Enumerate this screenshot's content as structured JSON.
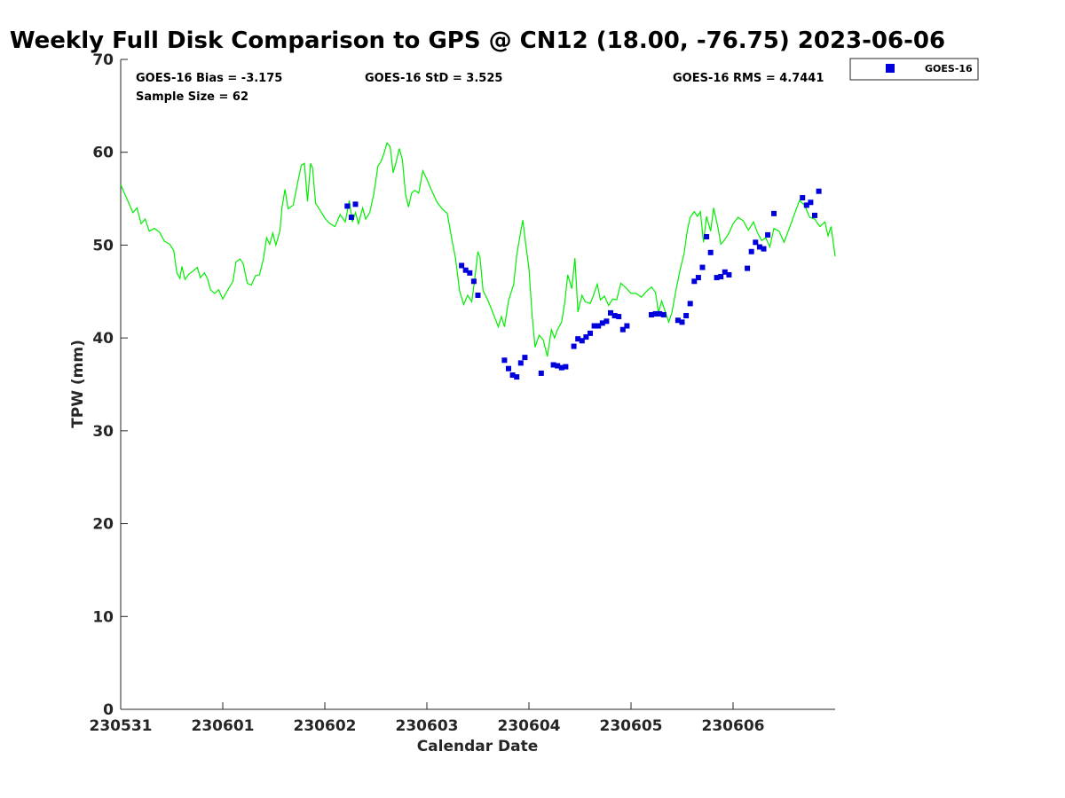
{
  "chart_data": {
    "type": "scatter",
    "title": "Weekly Full Disk Comparison to GPS @ CN12 (18.00, -76.75) 2023-06-06",
    "xlabel": "Calendar Date",
    "ylabel": "TPW (mm)",
    "xlim": [
      0,
      7
    ],
    "ylim": [
      0,
      70
    ],
    "x_ticks": [
      {
        "x": 0,
        "label": "230531"
      },
      {
        "x": 1,
        "label": "230601"
      },
      {
        "x": 2,
        "label": "230602"
      },
      {
        "x": 3,
        "label": "230603"
      },
      {
        "x": 4,
        "label": "230604"
      },
      {
        "x": 5,
        "label": "230605"
      },
      {
        "x": 6,
        "label": "230606"
      }
    ],
    "y_ticks": [
      0,
      10,
      20,
      30,
      40,
      50,
      60,
      70
    ],
    "stats": {
      "bias": "GOES-16 Bias = -3.175",
      "std": "GOES-16 StD = 3.525",
      "rms": "GOES-16 RMS = 4.7441",
      "sample": "Sample Size = 62"
    },
    "legend": {
      "placement": "outside-top-right",
      "entries": [
        {
          "name": "GOES-16",
          "color": "#0000dd",
          "marker": "square"
        }
      ]
    },
    "series": [
      {
        "name": "GPS",
        "kind": "line",
        "color": "#00ee00",
        "points": [
          [
            0.0,
            56.5
          ],
          [
            0.06,
            55.0
          ],
          [
            0.12,
            53.5
          ],
          [
            0.16,
            54.0
          ],
          [
            0.2,
            52.3
          ],
          [
            0.24,
            52.8
          ],
          [
            0.28,
            51.5
          ],
          [
            0.33,
            51.8
          ],
          [
            0.38,
            51.4
          ],
          [
            0.43,
            50.4
          ],
          [
            0.48,
            50.1
          ],
          [
            0.52,
            49.4
          ],
          [
            0.55,
            47.0
          ],
          [
            0.58,
            46.4
          ],
          [
            0.6,
            47.7
          ],
          [
            0.63,
            46.3
          ],
          [
            0.67,
            46.9
          ],
          [
            0.71,
            47.2
          ],
          [
            0.75,
            47.6
          ],
          [
            0.78,
            46.5
          ],
          [
            0.82,
            47.0
          ],
          [
            0.85,
            46.4
          ],
          [
            0.88,
            45.2
          ],
          [
            0.92,
            44.8
          ],
          [
            0.96,
            45.2
          ],
          [
            1.0,
            44.2
          ],
          [
            1.05,
            45.2
          ],
          [
            1.1,
            46.1
          ],
          [
            1.13,
            48.2
          ],
          [
            1.17,
            48.5
          ],
          [
            1.2,
            48.0
          ],
          [
            1.24,
            45.9
          ],
          [
            1.28,
            45.7
          ],
          [
            1.32,
            46.7
          ],
          [
            1.36,
            46.8
          ],
          [
            1.4,
            48.6
          ],
          [
            1.43,
            50.8
          ],
          [
            1.46,
            50.1
          ],
          [
            1.49,
            51.3
          ],
          [
            1.52,
            50.0
          ],
          [
            1.56,
            51.5
          ],
          [
            1.58,
            54.0
          ],
          [
            1.61,
            56.0
          ],
          [
            1.64,
            53.9
          ],
          [
            1.69,
            54.3
          ],
          [
            1.73,
            56.5
          ],
          [
            1.77,
            58.6
          ],
          [
            1.8,
            58.8
          ],
          [
            1.83,
            54.7
          ],
          [
            1.86,
            58.8
          ],
          [
            1.88,
            58.3
          ],
          [
            1.91,
            54.5
          ],
          [
            1.95,
            53.8
          ],
          [
            2.0,
            52.9
          ],
          [
            2.05,
            52.3
          ],
          [
            2.1,
            52.0
          ],
          [
            2.15,
            53.3
          ],
          [
            2.2,
            52.5
          ],
          [
            2.24,
            54.8
          ],
          [
            2.27,
            52.5
          ],
          [
            2.3,
            53.5
          ],
          [
            2.33,
            52.3
          ],
          [
            2.37,
            54.0
          ],
          [
            2.4,
            52.8
          ],
          [
            2.44,
            53.5
          ],
          [
            2.48,
            55.5
          ],
          [
            2.52,
            58.5
          ],
          [
            2.55,
            59.0
          ],
          [
            2.58,
            59.9
          ],
          [
            2.61,
            61.0
          ],
          [
            2.64,
            60.6
          ],
          [
            2.67,
            57.8
          ],
          [
            2.7,
            59.0
          ],
          [
            2.73,
            60.4
          ],
          [
            2.76,
            59.2
          ],
          [
            2.79,
            55.5
          ],
          [
            2.82,
            54.1
          ],
          [
            2.85,
            55.6
          ],
          [
            2.88,
            55.9
          ],
          [
            2.92,
            55.6
          ],
          [
            2.96,
            58.0
          ],
          [
            3.0,
            57.1
          ],
          [
            3.05,
            55.8
          ],
          [
            3.1,
            54.6
          ],
          [
            3.15,
            53.9
          ],
          [
            3.2,
            53.4
          ],
          [
            3.24,
            50.9
          ],
          [
            3.28,
            48.6
          ],
          [
            3.32,
            45.1
          ],
          [
            3.36,
            43.6
          ],
          [
            3.4,
            44.6
          ],
          [
            3.44,
            43.9
          ],
          [
            3.47,
            46.4
          ],
          [
            3.5,
            49.3
          ],
          [
            3.52,
            48.7
          ],
          [
            3.55,
            45.1
          ],
          [
            3.6,
            44.0
          ],
          [
            3.65,
            42.6
          ],
          [
            3.7,
            41.2
          ],
          [
            3.73,
            42.3
          ],
          [
            3.76,
            41.2
          ],
          [
            3.8,
            44.0
          ],
          [
            3.85,
            45.8
          ],
          [
            3.88,
            48.9
          ],
          [
            3.92,
            51.5
          ],
          [
            3.94,
            52.7
          ],
          [
            3.97,
            50.0
          ],
          [
            4.0,
            47.5
          ],
          [
            4.03,
            42.5
          ],
          [
            4.06,
            39.0
          ],
          [
            4.1,
            40.3
          ],
          [
            4.14,
            39.8
          ],
          [
            4.18,
            38.0
          ],
          [
            4.22,
            40.9
          ],
          [
            4.25,
            40.0
          ],
          [
            4.28,
            40.9
          ],
          [
            4.32,
            41.7
          ],
          [
            4.35,
            43.8
          ],
          [
            4.38,
            46.8
          ],
          [
            4.42,
            45.3
          ],
          [
            4.45,
            48.6
          ],
          [
            4.48,
            42.8
          ],
          [
            4.52,
            44.6
          ],
          [
            4.55,
            43.9
          ],
          [
            4.6,
            43.7
          ],
          [
            4.63,
            44.5
          ],
          [
            4.67,
            45.8
          ],
          [
            4.7,
            44.1
          ],
          [
            4.74,
            44.5
          ],
          [
            4.78,
            43.5
          ],
          [
            4.82,
            44.2
          ],
          [
            4.86,
            44.1
          ],
          [
            4.9,
            45.9
          ],
          [
            4.95,
            45.4
          ],
          [
            5.0,
            44.8
          ],
          [
            5.05,
            44.8
          ],
          [
            5.1,
            44.4
          ],
          [
            5.15,
            45.0
          ],
          [
            5.2,
            45.5
          ],
          [
            5.24,
            44.9
          ],
          [
            5.27,
            42.7
          ],
          [
            5.3,
            44.0
          ],
          [
            5.34,
            42.7
          ],
          [
            5.37,
            41.7
          ],
          [
            5.4,
            42.7
          ],
          [
            5.44,
            45.1
          ],
          [
            5.48,
            47.3
          ],
          [
            5.52,
            49.1
          ],
          [
            5.55,
            51.5
          ],
          [
            5.58,
            53.0
          ],
          [
            5.62,
            53.6
          ],
          [
            5.65,
            53.1
          ],
          [
            5.68,
            53.6
          ],
          [
            5.71,
            50.3
          ],
          [
            5.74,
            53.1
          ],
          [
            5.78,
            51.5
          ],
          [
            5.81,
            54.0
          ],
          [
            5.85,
            52.0
          ],
          [
            5.88,
            50.1
          ],
          [
            5.92,
            50.6
          ],
          [
            5.96,
            51.3
          ],
          [
            6.0,
            52.3
          ],
          [
            6.05,
            53.0
          ],
          [
            6.1,
            52.6
          ],
          [
            6.15,
            51.6
          ],
          [
            6.2,
            52.5
          ],
          [
            6.24,
            51.3
          ],
          [
            6.28,
            50.5
          ],
          [
            6.32,
            50.8
          ],
          [
            6.36,
            49.8
          ],
          [
            6.4,
            51.8
          ],
          [
            6.45,
            51.5
          ],
          [
            6.5,
            50.3
          ],
          [
            6.55,
            51.8
          ],
          [
            6.6,
            53.3
          ],
          [
            6.65,
            54.8
          ],
          [
            6.7,
            54.3
          ],
          [
            6.75,
            53.0
          ],
          [
            6.8,
            52.8
          ],
          [
            6.85,
            52.0
          ],
          [
            6.9,
            52.5
          ],
          [
            6.93,
            51.0
          ],
          [
            6.96,
            52.0
          ],
          [
            7.0,
            48.8
          ]
        ]
      },
      {
        "name": "GOES-16",
        "kind": "scatter",
        "color": "#0000dd",
        "points": [
          [
            2.22,
            54.2
          ],
          [
            2.26,
            53.0
          ],
          [
            2.3,
            54.4
          ],
          [
            3.34,
            47.8
          ],
          [
            3.38,
            47.3
          ],
          [
            3.42,
            47.0
          ],
          [
            3.46,
            46.1
          ],
          [
            3.5,
            44.6
          ],
          [
            3.76,
            37.6
          ],
          [
            3.8,
            36.7
          ],
          [
            3.84,
            36.0
          ],
          [
            3.88,
            35.8
          ],
          [
            3.92,
            37.3
          ],
          [
            3.96,
            37.9
          ],
          [
            4.12,
            36.2
          ],
          [
            4.24,
            37.1
          ],
          [
            4.28,
            37.0
          ],
          [
            4.32,
            36.8
          ],
          [
            4.36,
            36.9
          ],
          [
            4.44,
            39.1
          ],
          [
            4.48,
            39.9
          ],
          [
            4.52,
            39.7
          ],
          [
            4.56,
            40.1
          ],
          [
            4.6,
            40.5
          ],
          [
            4.64,
            41.3
          ],
          [
            4.68,
            41.3
          ],
          [
            4.72,
            41.6
          ],
          [
            4.76,
            41.8
          ],
          [
            4.8,
            42.7
          ],
          [
            4.84,
            42.4
          ],
          [
            4.88,
            42.3
          ],
          [
            4.92,
            40.9
          ],
          [
            4.96,
            41.3
          ],
          [
            5.2,
            42.5
          ],
          [
            5.24,
            42.6
          ],
          [
            5.28,
            42.6
          ],
          [
            5.32,
            42.5
          ],
          [
            5.46,
            41.9
          ],
          [
            5.5,
            41.7
          ],
          [
            5.54,
            42.4
          ],
          [
            5.58,
            43.7
          ],
          [
            5.62,
            46.1
          ],
          [
            5.66,
            46.5
          ],
          [
            5.7,
            47.6
          ],
          [
            5.74,
            50.9
          ],
          [
            5.78,
            49.2
          ],
          [
            5.84,
            46.5
          ],
          [
            5.88,
            46.6
          ],
          [
            5.92,
            47.1
          ],
          [
            5.96,
            46.8
          ],
          [
            6.14,
            47.5
          ],
          [
            6.18,
            49.3
          ],
          [
            6.22,
            50.3
          ],
          [
            6.26,
            49.8
          ],
          [
            6.3,
            49.6
          ],
          [
            6.34,
            51.1
          ],
          [
            6.4,
            53.4
          ],
          [
            6.68,
            55.1
          ],
          [
            6.72,
            54.3
          ],
          [
            6.76,
            54.6
          ],
          [
            6.8,
            53.2
          ],
          [
            6.84,
            55.8
          ]
        ]
      }
    ]
  }
}
